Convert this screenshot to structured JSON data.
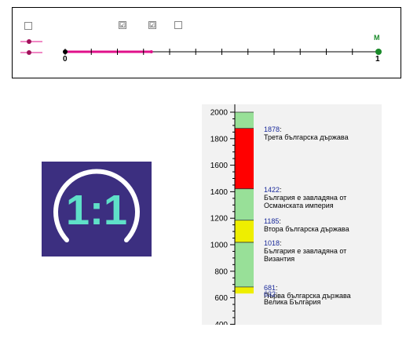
{
  "panel": {
    "checkboxes": [
      {
        "checked": false,
        "mark": ""
      },
      {
        "checked": true,
        "mark": "☑"
      },
      {
        "checked": true,
        "mark": "☑"
      },
      {
        "checked": false,
        "mark": ""
      }
    ],
    "number_line": {
      "start_label": "0",
      "end_label": "1",
      "point_label": "M",
      "segment_end_fraction": 0.275,
      "segment_color": "#e0108a",
      "point_color": "#1a8a2a",
      "divisions": 12
    }
  },
  "logo": {
    "text": "1:1",
    "background": "#3c2f80",
    "accent": "#5fe0c8"
  },
  "timeline": {
    "axis": {
      "ticks": [
        2000,
        1800,
        1600,
        1400,
        1200,
        1000,
        800,
        600,
        400
      ]
    },
    "segments": [
      {
        "from": 632,
        "to": 681,
        "color": "#eeee00"
      },
      {
        "from": 681,
        "to": 1018,
        "color": "#98e098"
      },
      {
        "from": 1018,
        "to": 1185,
        "color": "#eeee00"
      },
      {
        "from": 1185,
        "to": 1422,
        "color": "#98e098"
      },
      {
        "from": 1422,
        "to": 1878,
        "color": "#ff0000"
      },
      {
        "from": 1878,
        "to": 2000,
        "color": "#98e098"
      }
    ],
    "events": [
      {
        "year": "1878",
        "text": "Трета българска държава"
      },
      {
        "year": "1422",
        "text": "България е завладяна от Османската империя"
      },
      {
        "year": "1185",
        "text": "Втора българска държава"
      },
      {
        "year": "1018",
        "text": "България е завладяна от Византия"
      },
      {
        "year": "681",
        "text": "Първа българска държава"
      },
      {
        "year": "632",
        "text": "Велика България"
      }
    ]
  }
}
